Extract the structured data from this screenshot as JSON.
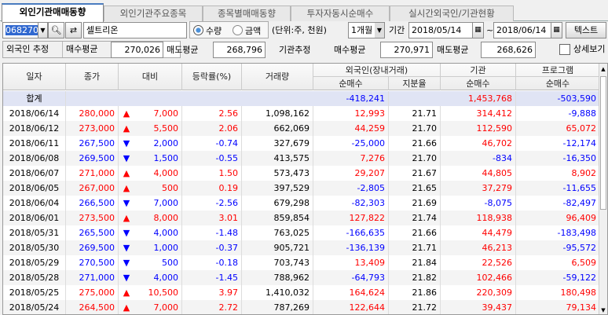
{
  "tabs": [
    "외인기관매매동향",
    "외인기관주요종목",
    "종목별매매동향",
    "투자자동시순매수",
    "실시간외국인/기관현황"
  ],
  "toolbar": {
    "code": "068270",
    "name": "셀트리온",
    "radio_qty": "수량",
    "radio_amt": "금액",
    "unit": "(단위:주, 천원)",
    "period": "1개월",
    "period_label": "기간",
    "date_from": "2018/05/14",
    "tilde": "~",
    "date_to": "2018/06/14",
    "text_button": "텍스트"
  },
  "estimates": {
    "foreign_label": "외국인 추정",
    "buy_avg_label": "매수평균",
    "foreign_buy_avg": "270,026",
    "sell_avg_label": "매도평균",
    "foreign_sell_avg": "268,796",
    "inst_label": "기관추정",
    "inst_buy_avg": "270,971",
    "inst_sell_avg": "268,626",
    "detail_label": "상세보기"
  },
  "headers": {
    "date": "일자",
    "close": "종가",
    "diff": "대비",
    "rate": "등락률(%)",
    "volume": "거래량",
    "foreign": "외국인(장내거래)",
    "foreign_net": "순매수",
    "foreign_share": "지분율",
    "inst": "기관",
    "inst_net": "순매수",
    "program": "프로그램",
    "program_net": "순매수"
  },
  "total": {
    "label": "합계",
    "foreign_net": "-418,241",
    "inst_net": "1,453,768",
    "program_net": "-503,590"
  },
  "colors": {
    "up": "#ff0000",
    "down": "#0000ff"
  },
  "rows": [
    [
      "2018/06/14",
      "280,000",
      "up",
      "7,000",
      "2.56",
      "1,098,162",
      "12,993",
      "21.71",
      "314,412",
      "-9,888"
    ],
    [
      "2018/06/12",
      "273,000",
      "up",
      "5,500",
      "2.06",
      "662,069",
      "44,259",
      "21.70",
      "112,590",
      "65,072"
    ],
    [
      "2018/06/11",
      "267,500",
      "down",
      "2,000",
      "-0.74",
      "327,679",
      "-25,000",
      "21.66",
      "46,702",
      "-12,174"
    ],
    [
      "2018/06/08",
      "269,500",
      "down",
      "1,500",
      "-0.55",
      "413,575",
      "7,276",
      "21.70",
      "-834",
      "-16,350"
    ],
    [
      "2018/06/07",
      "271,000",
      "up",
      "4,000",
      "1.50",
      "573,473",
      "29,207",
      "21.67",
      "44,805",
      "8,902"
    ],
    [
      "2018/06/05",
      "267,000",
      "up",
      "500",
      "0.19",
      "397,529",
      "-2,805",
      "21.65",
      "37,279",
      "-11,655"
    ],
    [
      "2018/06/04",
      "266,500",
      "down",
      "7,000",
      "-2.56",
      "679,298",
      "-82,303",
      "21.69",
      "-8,075",
      "-82,497"
    ],
    [
      "2018/06/01",
      "273,500",
      "up",
      "8,000",
      "3.01",
      "859,854",
      "127,822",
      "21.74",
      "118,938",
      "96,409"
    ],
    [
      "2018/05/31",
      "265,500",
      "down",
      "4,000",
      "-1.48",
      "763,025",
      "-166,635",
      "21.66",
      "44,479",
      "-183,498"
    ],
    [
      "2018/05/30",
      "269,500",
      "down",
      "1,000",
      "-0.37",
      "905,721",
      "-136,139",
      "21.71",
      "46,213",
      "-95,572"
    ],
    [
      "2018/05/29",
      "270,500",
      "down",
      "500",
      "-0.18",
      "703,743",
      "13,409",
      "21.84",
      "22,526",
      "6,509"
    ],
    [
      "2018/05/28",
      "271,000",
      "down",
      "4,000",
      "-1.45",
      "788,962",
      "-64,793",
      "21.82",
      "102,466",
      "-59,122"
    ],
    [
      "2018/05/25",
      "275,000",
      "up",
      "10,500",
      "3.97",
      "1,410,032",
      "164,624",
      "21.86",
      "220,309",
      "180,498"
    ],
    [
      "2018/05/24",
      "264,500",
      "up",
      "7,000",
      "2.72",
      "787,269",
      "122,644",
      "21.72",
      "39,437",
      "79,134"
    ]
  ]
}
